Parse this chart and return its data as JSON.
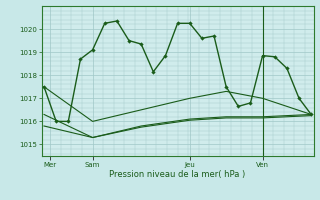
{
  "background_color": "#c8e8e8",
  "plot_bg_color": "#d0ecec",
  "grid_color": "#a0c8c8",
  "line_color": "#1a5c1a",
  "title": "Pression niveau de la mer( hPa )",
  "xlabel_ticks": [
    "Mer",
    "Sam",
    "Jeu",
    "Ven"
  ],
  "xlabel_tick_pos": [
    0.5,
    4,
    12,
    18
  ],
  "ylim": [
    1014.5,
    1021.0
  ],
  "yticks": [
    1015,
    1016,
    1017,
    1018,
    1019,
    1020
  ],
  "series1_x": [
    0,
    1,
    2,
    3,
    4,
    5,
    6,
    7,
    8,
    9,
    10,
    11,
    12,
    13,
    14,
    15,
    16,
    17,
    18,
    19,
    20,
    21,
    22
  ],
  "series1_y": [
    1017.5,
    1016.0,
    1016.0,
    1018.7,
    1019.1,
    1020.25,
    1020.35,
    1019.5,
    1019.35,
    1018.15,
    1018.85,
    1020.25,
    1020.25,
    1019.6,
    1019.7,
    1017.5,
    1016.65,
    1016.8,
    1018.85,
    1018.8,
    1018.3,
    1017.0,
    1016.3
  ],
  "series2_x": [
    0,
    4,
    8,
    12,
    15,
    18,
    22
  ],
  "series2_y": [
    1017.5,
    1016.0,
    1016.5,
    1017.0,
    1017.3,
    1017.0,
    1016.3
  ],
  "series3_x": [
    0,
    4,
    8,
    12,
    15,
    18,
    22
  ],
  "series3_y": [
    1016.3,
    1015.3,
    1015.8,
    1016.1,
    1016.2,
    1016.2,
    1016.3
  ],
  "series4_x": [
    0,
    4,
    8,
    12,
    15,
    18,
    22
  ],
  "series4_y": [
    1015.8,
    1015.3,
    1015.75,
    1016.05,
    1016.15,
    1016.15,
    1016.25
  ],
  "vline_pos": [
    18
  ],
  "xlim": [
    -0.2,
    22.2
  ]
}
